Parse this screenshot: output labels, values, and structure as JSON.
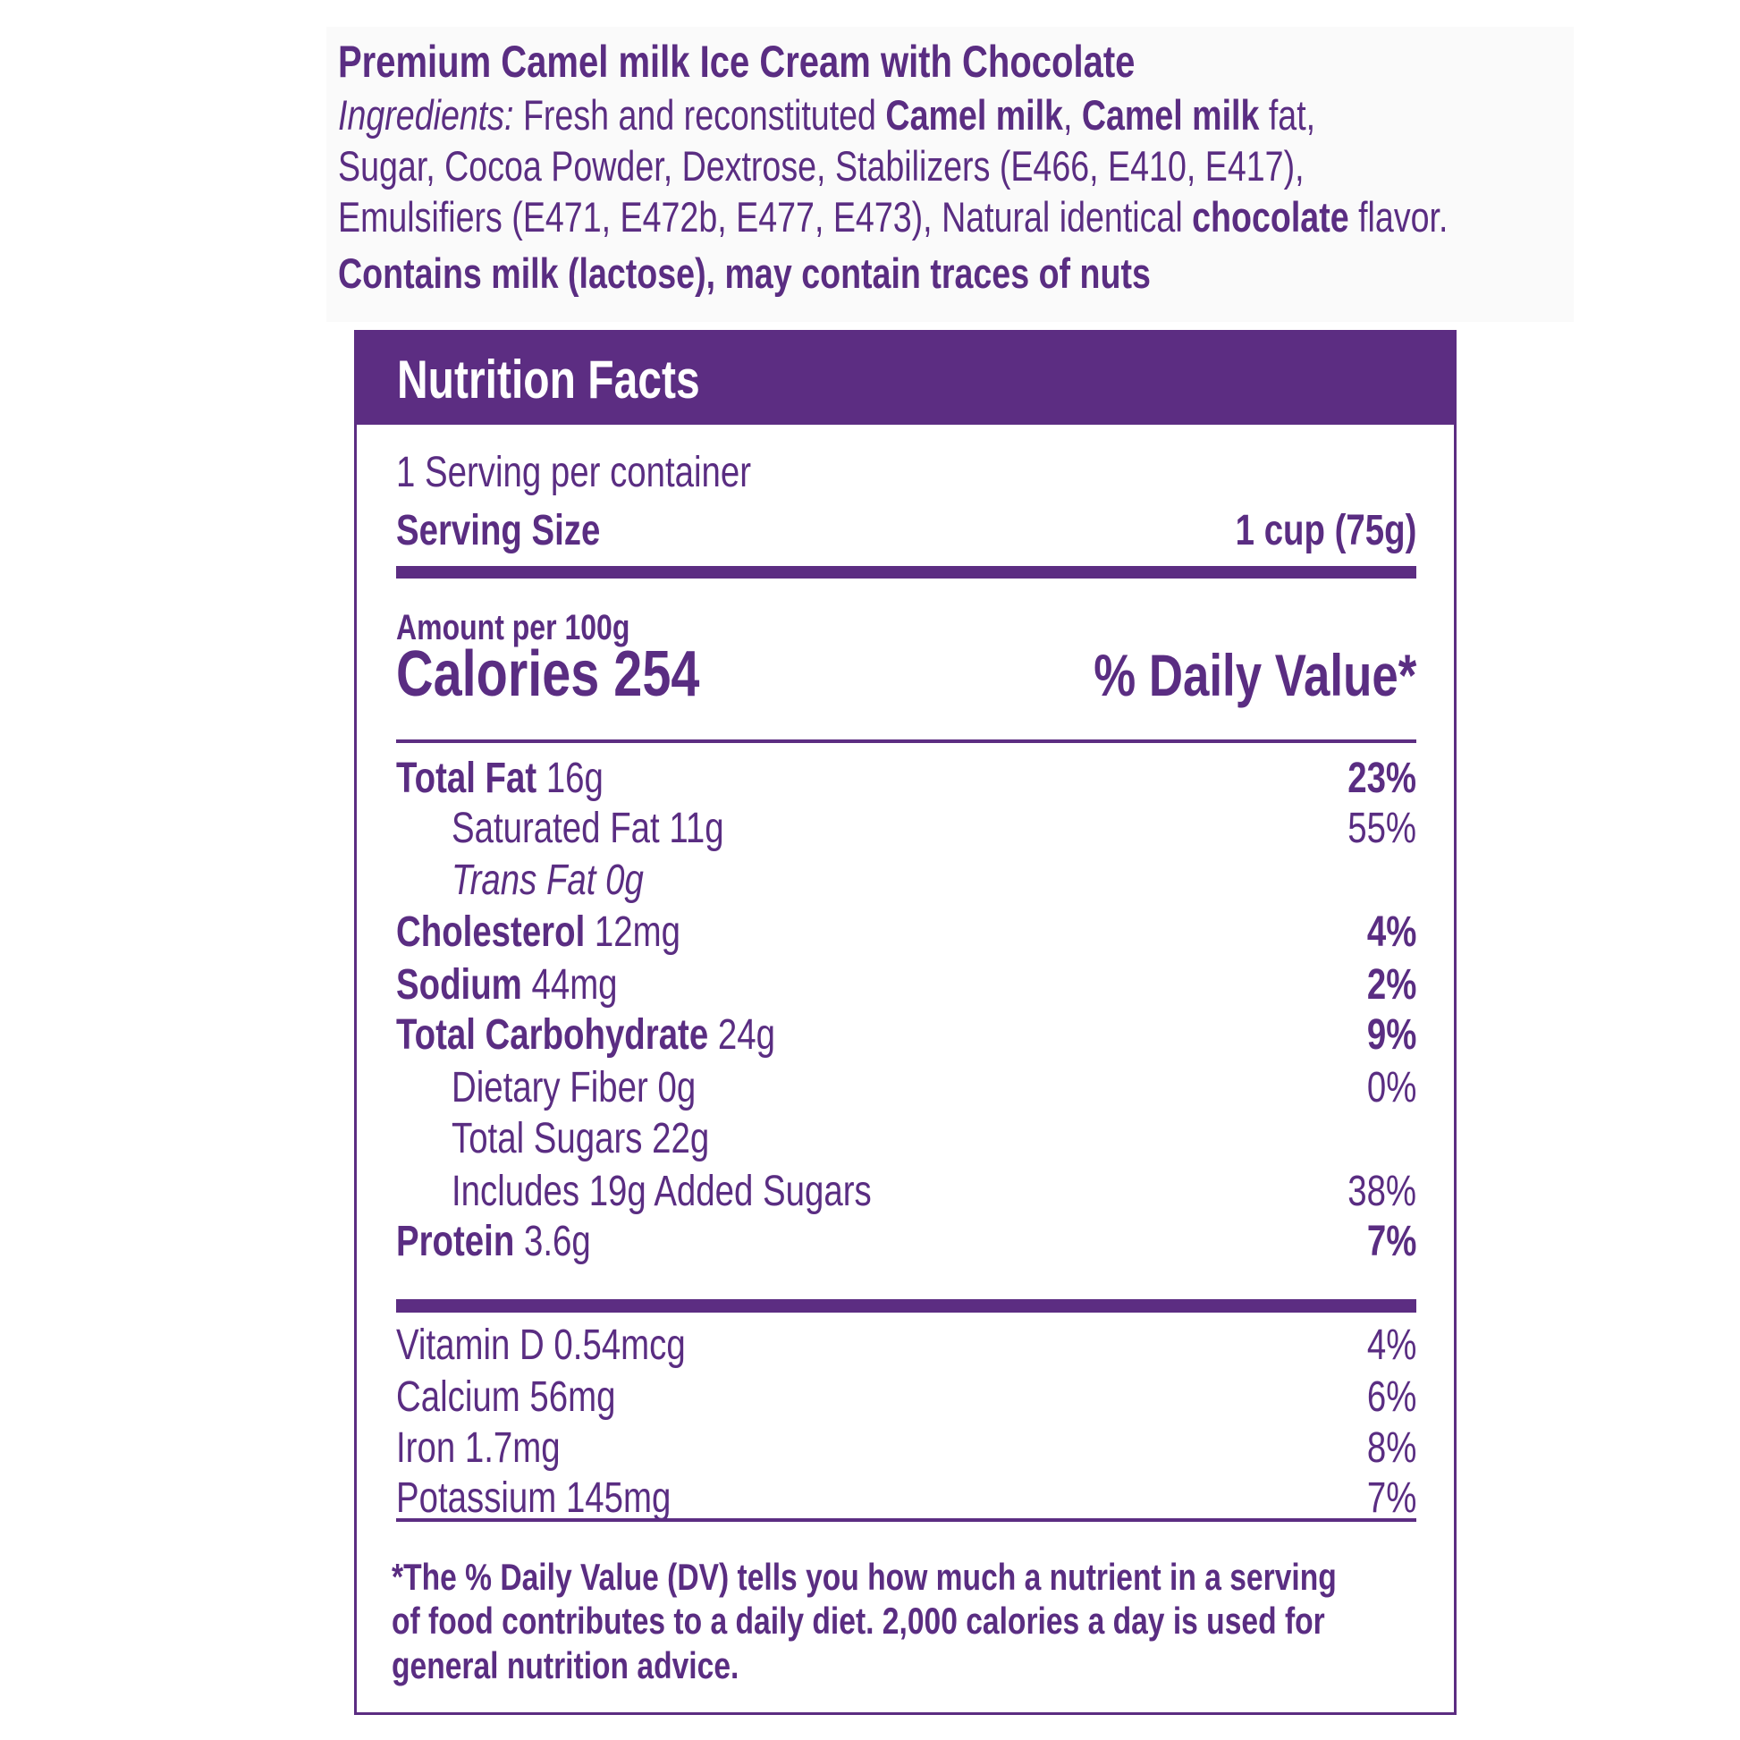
{
  "product": {
    "title": "Premium Camel milk Ice Cream with Chocolate",
    "ingredients_label": "Ingredients:",
    "ingredients_line1_a": "Fresh and reconstituted",
    "ingredients_line1_b": "Camel milk",
    "ingredients_line1_c": ",",
    "ingredients_line1_d": "Camel milk",
    "ingredients_line1_e": "fat,",
    "ingredients_line2": "Sugar, Cocoa Powder, Dextrose, Stabilizers (E466, E410, E417),",
    "ingredients_line3_a": "Emulsifiers (E471, E472b, E477, E473), Natural identical",
    "ingredients_line3_b": "chocolate",
    "ingredients_line3_c": "flavor.",
    "allergens": "Contains milk (lactose), may contain traces of nuts"
  },
  "facts": {
    "header": "Nutrition Facts",
    "servings": "1 Serving per container",
    "serving_size_label": "Serving Size",
    "serving_size_value": "1 cup (75g)",
    "amount_per": "Amount per 100g",
    "calories": "Calories 254",
    "dv_header": "% Daily Value*",
    "rows": [
      {
        "name": "Total Fat",
        "amount": "16g",
        "dv": "23%"
      },
      {
        "name": "Saturated Fat 11g",
        "dv": "55%"
      },
      {
        "name": "Trans Fat 0g"
      },
      {
        "name": "Cholesterol",
        "amount": "12mg",
        "dv": "4%"
      },
      {
        "name": "Sodium",
        "amount": "44mg",
        "dv": "2%"
      },
      {
        "name": "Total Carbohydrate",
        "amount": "24g",
        "dv": "9%"
      },
      {
        "name": "Dietary Fiber 0g",
        "dv": "0%"
      },
      {
        "name": "Total Sugars 22g"
      },
      {
        "name": "Includes 19g Added Sugars",
        "dv": "38%"
      },
      {
        "name": "Protein",
        "amount": "3.6g",
        "dv": "7%"
      }
    ],
    "vitamins": [
      {
        "name": "Vitamin D 0.54mcg",
        "dv": "4%"
      },
      {
        "name": "Calcium 56mg",
        "dv": "6%"
      },
      {
        "name": "Iron 1.7mg",
        "dv": "8%"
      },
      {
        "name": "Potassium 145mg",
        "dv": "7%"
      }
    ],
    "footnote_line1": "*The % Daily Value (DV) tells you how much a nutrient in a serving",
    "footnote_line2": "of food contributes to a daily diet. 2,000 calories a day is used for",
    "footnote_line3": "general nutrition advice."
  },
  "colors": {
    "brand_purple": "#5c2d82",
    "panel_bg": "#fafafa"
  }
}
